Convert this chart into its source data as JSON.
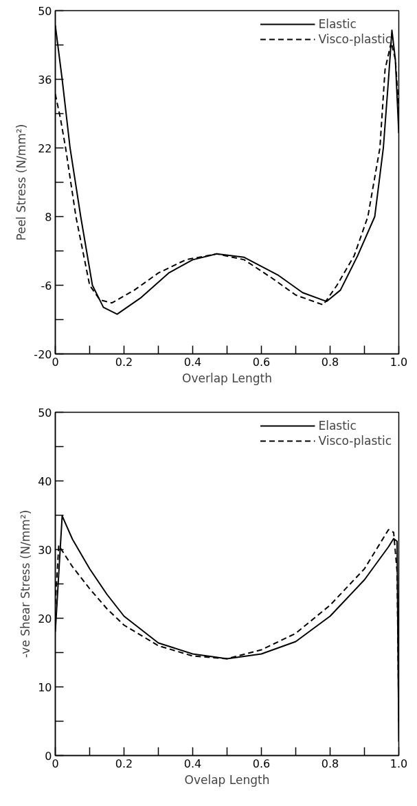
{
  "chart_data": [
    {
      "type": "line",
      "xlabel": "Overlap Length",
      "ylabel": "Peel Stress (N/mm²)",
      "xlim": [
        0,
        1
      ],
      "ylim": [
        -20,
        50
      ],
      "xticks": [
        0,
        {
          "value": 0.1,
          "label": null
        },
        0.2,
        {
          "value": 0.3,
          "label": null
        },
        0.4,
        {
          "value": 0.5,
          "label": null
        },
        0.6,
        {
          "value": 0.7,
          "label": null
        },
        0.8,
        {
          "value": 0.9,
          "label": null
        },
        {
          "value": 1,
          "label": "1.0"
        }
      ],
      "yticks": [
        -20,
        {
          "value": -13,
          "label": null
        },
        -6,
        {
          "value": 1,
          "label": null
        },
        8,
        {
          "value": 15,
          "label": null
        },
        22,
        {
          "value": 29,
          "label": null
        },
        36,
        {
          "value": 43,
          "label": null
        },
        50
      ],
      "legend": "top right",
      "series": [
        {
          "name": "Elastic",
          "color": "#000000",
          "line_style": "solid",
          "x": [
            0,
            0.02,
            0.043,
            0.074,
            0.108,
            0.14,
            0.18,
            0.25,
            0.33,
            0.4,
            0.47,
            0.55,
            0.65,
            0.72,
            0.79,
            0.83,
            0.88,
            0.93,
            0.955,
            0.97,
            0.98,
            0.99,
            1.0
          ],
          "values": [
            47,
            36,
            22,
            8,
            -6,
            -10.5,
            -11.9,
            -8.5,
            -3.5,
            -0.8,
            0.4,
            -0.3,
            -4,
            -7.5,
            -9.3,
            -7,
            0,
            8,
            22,
            36,
            46,
            40,
            25
          ]
        },
        {
          "name": "Visco-plastic",
          "color": "#000000",
          "line_style": "dashed",
          "x": [
            0,
            0.015,
            0.03,
            0.06,
            0.1,
            0.13,
            0.165,
            0.23,
            0.3,
            0.38,
            0.47,
            0.55,
            0.63,
            0.7,
            0.78,
            0.82,
            0.87,
            0.91,
            0.945,
            0.96,
            0.978,
            0.99,
            1.0
          ],
          "values": [
            33,
            28,
            22,
            8,
            -6,
            -9,
            -9.6,
            -7,
            -3.5,
            -0.8,
            0.4,
            -0.8,
            -4.5,
            -8,
            -10,
            -6,
            0,
            8,
            22,
            38,
            43.6,
            40,
            30
          ]
        }
      ]
    },
    {
      "type": "line",
      "xlabel": "Ovelap Length",
      "ylabel": "-ve Shear Stress (N/mm²)",
      "xlim": [
        0,
        1
      ],
      "ylim": [
        0,
        50
      ],
      "xticks": [
        0,
        {
          "value": 0.1,
          "label": null
        },
        0.2,
        {
          "value": 0.3,
          "label": null
        },
        0.4,
        {
          "value": 0.5,
          "label": null
        },
        0.6,
        {
          "value": 0.7,
          "label": null
        },
        0.8,
        {
          "value": 0.9,
          "label": null
        },
        {
          "value": 1,
          "label": "1.0"
        }
      ],
      "yticks": [
        0,
        {
          "value": 5,
          "label": null
        },
        10,
        {
          "value": 15,
          "label": null
        },
        20,
        {
          "value": 25,
          "label": null
        },
        30,
        {
          "value": 35,
          "label": null
        },
        40,
        {
          "value": 45,
          "label": null
        },
        50
      ],
      "legend": "top right",
      "series": [
        {
          "name": "Elastic",
          "color": "#000000",
          "line_style": "solid",
          "x": [
            0,
            0.02,
            0.05,
            0.1,
            0.15,
            0.2,
            0.3,
            0.4,
            0.5,
            0.6,
            0.7,
            0.8,
            0.9,
            0.97,
            0.985,
            0.995,
            1.0
          ],
          "values": [
            18,
            34.9,
            31.5,
            27.2,
            23.5,
            20.3,
            16.4,
            14.8,
            14.1,
            14.8,
            16.6,
            20.3,
            25.6,
            30.4,
            31.6,
            31.2,
            2
          ]
        },
        {
          "name": "Visco-plastic",
          "color": "#000000",
          "line_style": "dashed",
          "x": [
            0,
            0.01,
            0.05,
            0.1,
            0.15,
            0.2,
            0.3,
            0.4,
            0.5,
            0.6,
            0.7,
            0.8,
            0.9,
            0.97,
            0.985,
            0.995,
            1.0
          ],
          "values": [
            22,
            30.6,
            27.5,
            24.3,
            21.4,
            19,
            16,
            14.5,
            14.1,
            15.4,
            17.8,
            21.9,
            27.2,
            32.9,
            32.5,
            26.8,
            5
          ]
        }
      ]
    }
  ]
}
